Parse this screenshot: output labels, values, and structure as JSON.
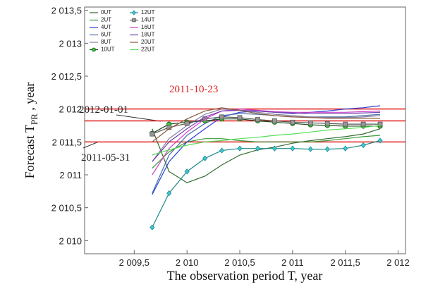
{
  "chart_data": {
    "type": "line",
    "x_label": "The observation period T, year",
    "y_label": {
      "text": "Forecast T",
      "sub": "PR",
      "suffix": " , year"
    },
    "xlim": [
      2009.03,
      2012.07
    ],
    "ylim": [
      2009.8,
      2013.55
    ],
    "xticks": [
      {
        "value": 2009.5,
        "label": "2 009,5"
      },
      {
        "value": 2010,
        "label": "2 010"
      },
      {
        "value": 2010.5,
        "label": "2 010,5"
      },
      {
        "value": 2011,
        "label": "2 011"
      },
      {
        "value": 2011.5,
        "label": "2 011,5"
      },
      {
        "value": 2012,
        "label": "2 012"
      }
    ],
    "yticks": [
      {
        "value": 2010,
        "label": "2 010"
      },
      {
        "value": 2010.5,
        "label": "2 010,5"
      },
      {
        "value": 2011,
        "label": "2 011"
      },
      {
        "value": 2011.5,
        "label": "2 011,5"
      },
      {
        "value": 2012,
        "label": "2 012"
      },
      {
        "value": 2012.5,
        "label": "2 012,5"
      },
      {
        "value": 2013,
        "label": "2 013"
      },
      {
        "value": 2013.5,
        "label": "2 013,5"
      }
    ],
    "reference_lines": [
      {
        "value": 2012.0,
        "label": "2012-01-01",
        "color": "#e02020",
        "label_color": "#222222"
      },
      {
        "value": 2011.82,
        "label": "2011-10-23",
        "color": "#e02020",
        "label_color": "#e02020"
      },
      {
        "value": 2011.5,
        "label": "2011-05-31",
        "color": "#e02020",
        "label_color": "#222222"
      }
    ],
    "x": [
      2009.67,
      2009.83,
      2010.0,
      2010.17,
      2010.33,
      2010.5,
      2010.67,
      2010.83,
      2011.0,
      2011.17,
      2011.33,
      2011.5,
      2011.67,
      2011.83
    ],
    "series": [
      {
        "name": "0UT",
        "color": "#2e6b2e",
        "values": [
          2011.7,
          2011.05,
          2010.88,
          2010.98,
          2011.15,
          2011.3,
          2011.38,
          2011.42,
          2011.48,
          2011.52,
          2011.55,
          2011.58,
          2011.62,
          2011.7
        ]
      },
      {
        "name": "2UT",
        "color": "#3a9a3a",
        "values": [
          2011.1,
          2011.35,
          2011.5,
          2011.55,
          2011.55,
          2011.52,
          2011.5,
          2011.5,
          2011.5,
          2011.5,
          2011.52,
          2011.55,
          2011.58,
          2011.6
        ]
      },
      {
        "name": "4UT",
        "color": "#2a3ed8",
        "values": [
          2010.7,
          2011.2,
          2011.5,
          2011.7,
          2011.88,
          2011.95,
          2011.97,
          2011.95,
          2011.93,
          2011.95,
          2011.97,
          2012.0,
          2012.02,
          2012.05
        ]
      },
      {
        "name": "6UT",
        "color": "#4a6fa8",
        "values": [
          2010.72,
          2011.3,
          2011.6,
          2011.78,
          2011.9,
          2011.93,
          2011.92,
          2011.9,
          2011.88,
          2011.88,
          2011.88,
          2011.88,
          2011.9,
          2011.92
        ]
      },
      {
        "name": "8UT",
        "color": "#8a7fa0",
        "values": [
          2011.2,
          2011.55,
          2011.75,
          2011.92,
          2012.0,
          2011.98,
          2011.95,
          2011.92,
          2011.9,
          2011.88,
          2011.87,
          2011.87,
          2011.88,
          2011.9
        ]
      },
      {
        "name": "10UT",
        "color": "#1a4a1a",
        "marker": "circle",
        "marker_color": "#33cc33",
        "values": [
          2011.63,
          2011.77,
          2011.8,
          2011.82,
          2011.85,
          2011.85,
          2011.82,
          2011.8,
          2011.78,
          2011.76,
          2011.75,
          2011.74,
          2011.74,
          2011.74
        ]
      },
      {
        "name": "12UT",
        "color": "#1f8a8a",
        "marker": "diamond",
        "marker_color": "#3cc8d8",
        "values": [
          2010.2,
          2010.72,
          2011.05,
          2011.25,
          2011.37,
          2011.4,
          2011.4,
          2011.4,
          2011.4,
          2011.39,
          2011.39,
          2011.4,
          2011.45,
          2011.52
        ]
      },
      {
        "name": "14UT",
        "color": "#555555",
        "marker": "square",
        "marker_color": "#999999",
        "values": [
          2011.62,
          2011.72,
          2011.78,
          2011.85,
          2011.88,
          2011.87,
          2011.84,
          2011.82,
          2011.8,
          2011.79,
          2011.78,
          2011.77,
          2011.77,
          2011.77
        ]
      },
      {
        "name": "16UT",
        "color": "#d040c8",
        "values": [
          2011.0,
          2011.4,
          2011.65,
          2011.85,
          2011.97,
          2012.0,
          2011.98,
          2011.96,
          2011.95,
          2011.95,
          2011.95,
          2011.95,
          2011.96,
          2011.97
        ]
      },
      {
        "name": "18UT",
        "color": "#7040b0",
        "values": [
          2011.2,
          2011.5,
          2011.7,
          2011.88,
          2011.97,
          2011.98,
          2011.97,
          2011.95,
          2011.94,
          2011.93,
          2011.93,
          2011.93,
          2011.94,
          2011.95
        ]
      },
      {
        "name": "20UT",
        "color": "#8a5a3a",
        "values": [
          2011.5,
          2011.7,
          2011.85,
          2011.97,
          2012.02,
          2011.98,
          2011.93,
          2011.9,
          2011.88,
          2011.87,
          2011.86,
          2011.86,
          2011.86,
          2011.86
        ]
      },
      {
        "name": "22UT",
        "color": "#55dd55",
        "values": [
          2011.3,
          2011.38,
          2011.45,
          2011.5,
          2011.52,
          2011.55,
          2011.57,
          2011.6,
          2011.62,
          2011.65,
          2011.68,
          2011.7,
          2011.72,
          2011.75
        ]
      }
    ]
  }
}
